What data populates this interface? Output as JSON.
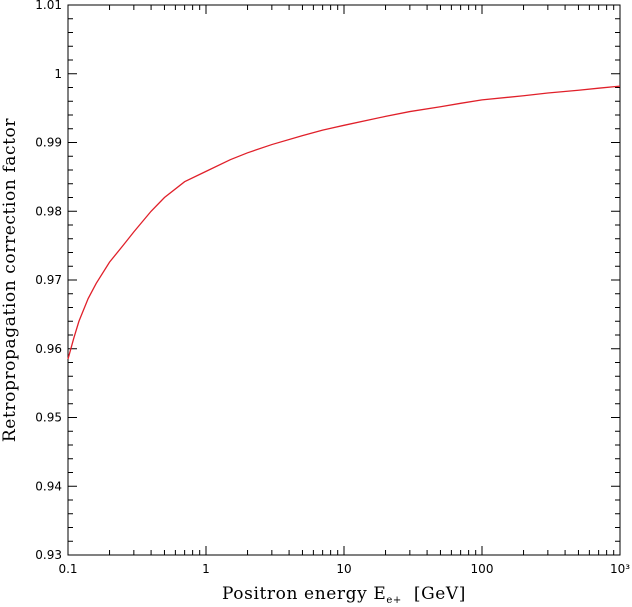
{
  "chart_data": {
    "type": "line",
    "xlabel": "Positron energy E",
    "xlabel_subscript": "e+",
    "xlabel_unit": "[GeV]",
    "ylabel": "Retropropagation correction factor",
    "xscale": "log",
    "xlim": [
      0.1,
      1000
    ],
    "ylim": [
      0.93,
      1.01
    ],
    "x_tick_labels": [
      {
        "value": 0.1,
        "label": "0.1"
      },
      {
        "value": 1,
        "label": "1"
      },
      {
        "value": 10,
        "label": "10"
      },
      {
        "value": 100,
        "label": "100"
      },
      {
        "value": 1000,
        "label": "10³"
      }
    ],
    "y_tick_labels": [
      {
        "value": 0.93,
        "label": "0.93"
      },
      {
        "value": 0.94,
        "label": "0.94"
      },
      {
        "value": 0.95,
        "label": "0.95"
      },
      {
        "value": 0.96,
        "label": "0.96"
      },
      {
        "value": 0.97,
        "label": "0.97"
      },
      {
        "value": 0.98,
        "label": "0.98"
      },
      {
        "value": 0.99,
        "label": "0.99"
      },
      {
        "value": 1.0,
        "label": "1"
      },
      {
        "value": 1.01,
        "label": "1.01"
      }
    ],
    "grid": false,
    "series": [
      {
        "color": "#e0202a",
        "x": [
          0.1,
          0.11,
          0.12,
          0.14,
          0.16,
          0.2,
          0.25,
          0.3,
          0.4,
          0.5,
          0.7,
          1,
          1.5,
          2,
          3,
          5,
          7,
          10,
          20,
          30,
          50,
          70,
          100,
          200,
          300,
          500,
          700,
          1000
        ],
        "y": [
          0.9585,
          0.9615,
          0.964,
          0.9673,
          0.9695,
          0.9726,
          0.975,
          0.977,
          0.98,
          0.982,
          0.9843,
          0.9858,
          0.9875,
          0.9885,
          0.9897,
          0.991,
          0.9918,
          0.9925,
          0.9938,
          0.9945,
          0.9952,
          0.9957,
          0.9962,
          0.9968,
          0.9972,
          0.9976,
          0.9979,
          0.9982
        ]
      }
    ]
  }
}
